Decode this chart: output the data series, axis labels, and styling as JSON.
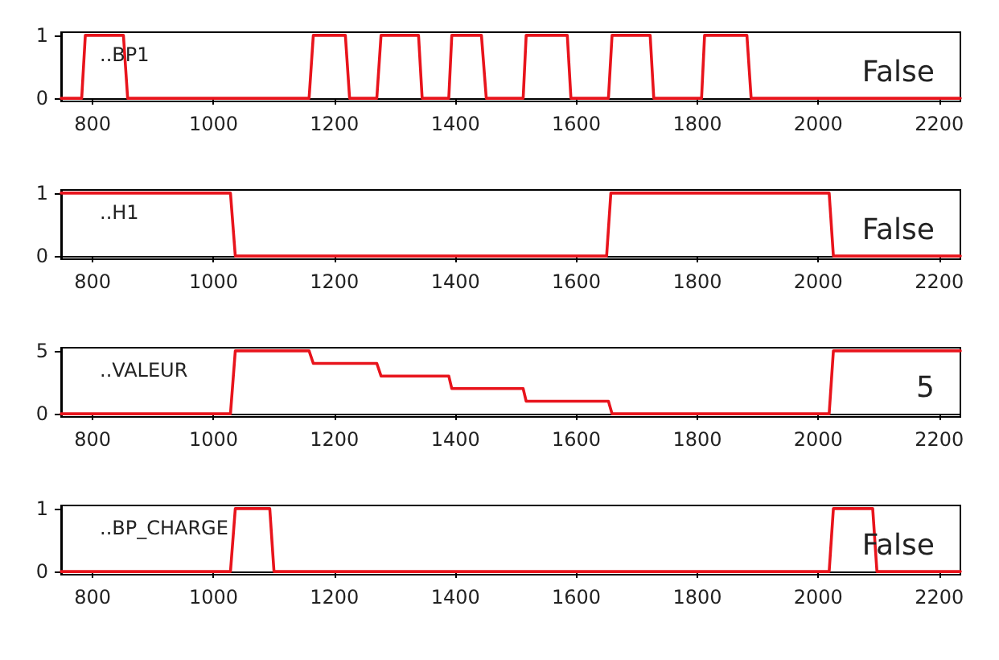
{
  "chart_data": [
    {
      "type": "line",
      "x": [
        748,
        782,
        788,
        851,
        858,
        1158,
        1165,
        1218,
        1225,
        1270,
        1277,
        1339,
        1345,
        1389,
        1394,
        1443,
        1451,
        1512,
        1517,
        1585,
        1591,
        1653,
        1659,
        1722,
        1728,
        1807,
        1812,
        1882,
        1889,
        2235
      ],
      "series": [
        {
          "color": "#e8141c",
          "values": [
            0,
            0,
            1,
            1,
            0,
            0,
            1,
            1,
            0,
            0,
            1,
            1,
            0,
            0,
            1,
            1,
            0,
            0,
            1,
            1,
            0,
            0,
            1,
            1,
            0,
            0,
            1,
            1,
            0,
            0
          ]
        }
      ],
      "xlim": [
        748,
        2235
      ],
      "xticks": [
        800,
        1000,
        1200,
        1400,
        1600,
        1800,
        2000,
        2200
      ],
      "ylim": [
        -0.05,
        1.05
      ],
      "yticks": [
        0,
        1
      ],
      "grid": false,
      "marker": "none",
      "line_style": "solid",
      "annotations": [
        "..BP1",
        "False"
      ]
    },
    {
      "type": "line",
      "x": [
        748,
        1028,
        1036,
        1650,
        1657,
        2018,
        2025,
        2235
      ],
      "series": [
        {
          "color": "#e8141c",
          "values": [
            1,
            1,
            0,
            0,
            1,
            1,
            0,
            0
          ]
        }
      ],
      "xlim": [
        748,
        2235
      ],
      "xticks": [
        800,
        1000,
        1200,
        1400,
        1600,
        1800,
        2000,
        2200
      ],
      "ylim": [
        -0.05,
        1.05
      ],
      "yticks": [
        0,
        1
      ],
      "grid": false,
      "marker": "none",
      "line_style": "solid",
      "annotations": [
        "..H1",
        "False"
      ]
    },
    {
      "type": "line",
      "x": [
        748,
        1028,
        1036,
        1158,
        1165,
        1270,
        1277,
        1389,
        1394,
        1512,
        1517,
        1653,
        1659,
        2018,
        2025,
        2235
      ],
      "series": [
        {
          "color": "#e8141c",
          "values": [
            0,
            0,
            5,
            5,
            4,
            4,
            3,
            3,
            2,
            2,
            1,
            1,
            0,
            0,
            5,
            5
          ]
        }
      ],
      "xlim": [
        748,
        2235
      ],
      "xticks": [
        800,
        1000,
        1200,
        1400,
        1600,
        1800,
        2000,
        2200
      ],
      "ylim": [
        -0.25,
        5.25
      ],
      "yticks": [
        0,
        5
      ],
      "grid": false,
      "marker": "none",
      "line_style": "solid",
      "annotations": [
        "..VALEUR",
        "5"
      ]
    },
    {
      "type": "line",
      "x": [
        748,
        1028,
        1036,
        1093,
        1100,
        2018,
        2025,
        2090,
        2097,
        2235
      ],
      "series": [
        {
          "color": "#e8141c",
          "values": [
            0,
            0,
            1,
            1,
            0,
            0,
            1,
            1,
            0,
            0
          ]
        }
      ],
      "xlim": [
        748,
        2235
      ],
      "xticks": [
        800,
        1000,
        1200,
        1400,
        1600,
        1800,
        2000,
        2200
      ],
      "ylim": [
        -0.05,
        1.05
      ],
      "yticks": [
        0,
        1
      ],
      "grid": false,
      "marker": "none",
      "line_style": "solid",
      "annotations": [
        "..BP_CHARGE",
        "False"
      ]
    }
  ]
}
